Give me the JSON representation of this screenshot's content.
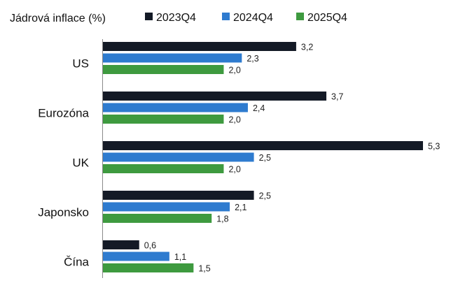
{
  "chart_data": {
    "type": "bar",
    "orientation": "horizontal",
    "title": "Jádrová inflace (%)",
    "categories": [
      "US",
      "Eurozóna",
      "UK",
      "Japonsko",
      "Čína"
    ],
    "series": [
      {
        "name": "2023Q4",
        "color": "#141a26",
        "values": [
          3.2,
          3.7,
          5.3,
          2.5,
          0.6
        ],
        "labels": [
          "3,2",
          "3,7",
          "5,3",
          "2,5",
          "0,6"
        ]
      },
      {
        "name": "2024Q4",
        "color": "#2e7bcf",
        "values": [
          2.3,
          2.4,
          2.5,
          2.1,
          1.1
        ],
        "labels": [
          "2,3",
          "2,4",
          "2,5",
          "2,1",
          "1,1"
        ]
      },
      {
        "name": "2025Q4",
        "color": "#3e9a3f",
        "values": [
          2.0,
          2.0,
          2.0,
          1.8,
          1.5
        ],
        "labels": [
          "2,0",
          "2,0",
          "2,0",
          "1,8",
          "1,5"
        ]
      }
    ],
    "xlim": [
      0,
      5.3
    ],
    "grid": false,
    "legend_position": "top"
  }
}
